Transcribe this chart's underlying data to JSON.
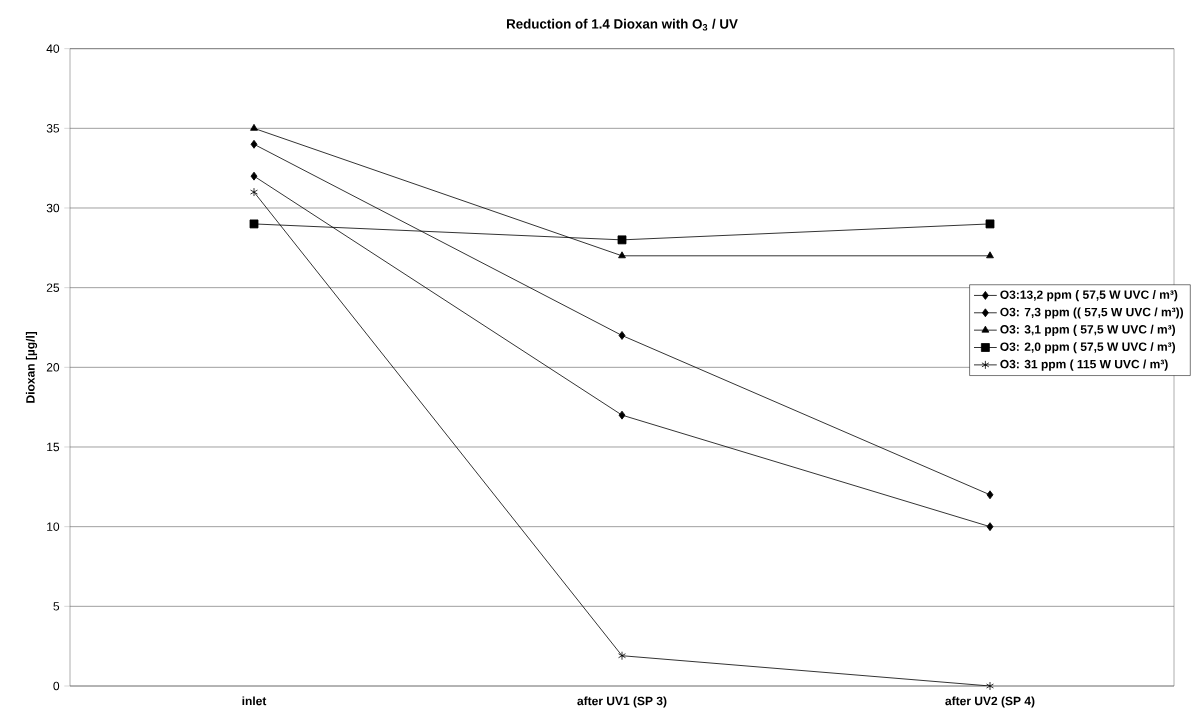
{
  "chart_data": {
    "type": "line",
    "title": "Reduction of 1.4 Dioxan with O$_{3}$ / UV",
    "ylabel": "Dioxan [µg/l]",
    "categories": [
      "inlet",
      "after UV1 (SP 3)",
      "after UV2 (SP 4)"
    ],
    "series": [
      {
        "name": "O3:13,2 ppm ( 57,5 W UVC / m³)",
        "color": "#000000",
        "marker": "diamond",
        "values": [
          32,
          17,
          10
        ]
      },
      {
        "name": "O3: 7,3 ppm (( 57,5 W UVC / m³))",
        "color": "#000000",
        "marker": "diamond",
        "values": [
          34,
          22,
          12
        ]
      },
      {
        "name": "O3: 3,1 ppm ( 57,5 W UVC / m³)",
        "color": "#000000",
        "marker": "triangle",
        "values": [
          35,
          27,
          27
        ]
      },
      {
        "name": "O3: 2,0 ppm ( 57,5 W UVC / m³)",
        "color": "#000000",
        "marker": "square",
        "values": [
          29,
          28,
          29
        ]
      },
      {
        "name": "O3: 31 ppm ( 115 W UVC / m³)",
        "color": "#000000",
        "marker": "cross",
        "values": [
          31,
          1.9,
          0
        ]
      }
    ],
    "ylim": [
      0,
      40
    ],
    "yticks": [
      0,
      5,
      10,
      15,
      20,
      25,
      30,
      35,
      40
    ],
    "grid": "y",
    "legend": "right",
    "line_style": "solid"
  }
}
